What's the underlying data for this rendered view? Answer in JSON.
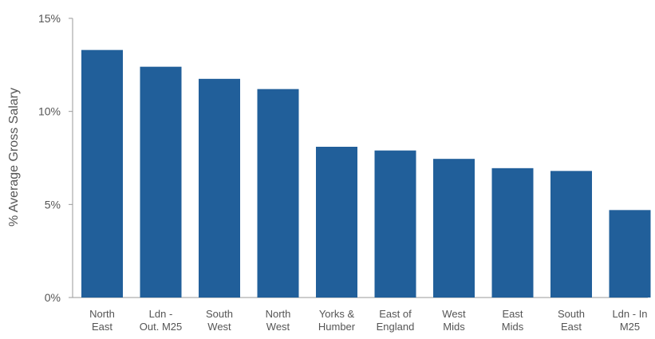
{
  "chart_data": {
    "type": "bar",
    "title": "",
    "xlabel": "",
    "ylabel": "% Average  Gross Salary",
    "categories": [
      [
        "North",
        "East"
      ],
      [
        "Ldn -",
        "Out. M25"
      ],
      [
        "South",
        "West"
      ],
      [
        "North",
        "West"
      ],
      [
        "Yorks &",
        "Humber"
      ],
      [
        "East of",
        "England"
      ],
      [
        "West",
        "Mids"
      ],
      [
        "East",
        "Mids"
      ],
      [
        "South",
        "East"
      ],
      [
        "Ldn - In",
        "M25"
      ]
    ],
    "values": [
      13.3,
      12.4,
      11.75,
      11.2,
      8.1,
      7.9,
      7.45,
      6.95,
      6.8,
      4.7
    ],
    "ylim": [
      0,
      15
    ],
    "yticks": [
      0,
      5,
      10,
      15
    ],
    "ytick_labels": [
      "0%",
      "5%",
      "10%",
      "15%"
    ],
    "bar_color": "#215f9a",
    "grid": false,
    "legend": "none"
  }
}
